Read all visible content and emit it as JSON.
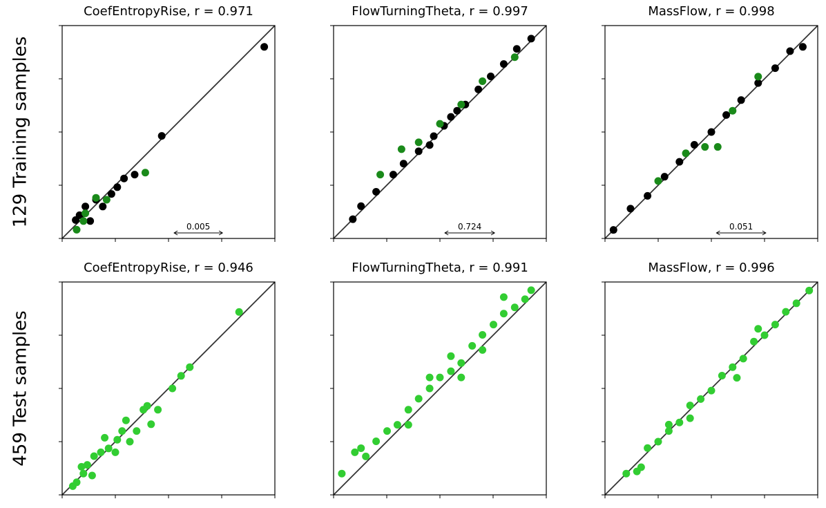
{
  "row_labels": [
    "129 Training samples",
    "459 Test samples"
  ],
  "chart_data": [
    {
      "type": "scatter",
      "title": "CoefEntropyRise, r = 0.971",
      "scale_bar": 0.005,
      "xlim": [
        0,
        0.022
      ],
      "ylim": [
        0,
        0.022
      ],
      "xticks": [
        0,
        0.0055,
        0.011,
        0.0165,
        0.022
      ],
      "yticks": [
        0,
        0.0055,
        0.011,
        0.0165,
        0.022
      ],
      "series": [
        {
          "color": "#000000",
          "x": [
            0.0209,
            0.0103,
            0.0014,
            0.0024,
            0.0035,
            0.0051,
            0.0064,
            0.0075,
            0.0042,
            0.0029,
            0.0057,
            0.0018
          ],
          "values": [
            0.0198,
            0.0106,
            0.0019,
            0.0033,
            0.004,
            0.0046,
            0.0062,
            0.0066,
            0.0033,
            0.0018,
            0.0053,
            0.0024
          ]
        },
        {
          "color": "#1a8a1a",
          "x": [
            0.0086,
            0.0015,
            0.0024,
            0.0035,
            0.0046,
            0.0022
          ],
          "values": [
            0.0068,
            0.0009,
            0.0026,
            0.0042,
            0.004,
            0.0018
          ]
        }
      ]
    },
    {
      "type": "scatter",
      "title": "FlowTurningTheta, r = 0.997",
      "scale_bar": 0.724,
      "xlim": [
        0,
        3.1
      ],
      "ylim": [
        0,
        3.1
      ],
      "xticks": [
        0,
        0.775,
        1.55,
        2.325,
        3.1
      ],
      "yticks": [
        0,
        0.775,
        1.55,
        2.325,
        3.1
      ],
      "series": [
        {
          "color": "#000000",
          "x": [
            0.28,
            0.4,
            0.62,
            0.87,
            1.02,
            1.24,
            1.46,
            1.61,
            1.8,
            1.92,
            2.11,
            2.29,
            2.48,
            2.67,
            2.88,
            1.4,
            1.71
          ],
          "values": [
            0.28,
            0.47,
            0.68,
            0.93,
            1.09,
            1.27,
            1.49,
            1.64,
            1.86,
            1.95,
            2.17,
            2.36,
            2.54,
            2.76,
            2.91,
            1.36,
            1.77
          ]
        },
        {
          "color": "#1a8a1a",
          "x": [
            0.68,
            0.99,
            1.55,
            1.86,
            2.17,
            2.64,
            1.24
          ],
          "values": [
            0.93,
            1.3,
            1.67,
            1.95,
            2.29,
            2.64,
            1.4
          ]
        }
      ]
    },
    {
      "type": "scatter",
      "title": "MassFlow, r = 0.998",
      "scale_bar": 0.051,
      "xlim": [
        0,
        0.22
      ],
      "ylim": [
        0,
        0.22
      ],
      "xticks": [
        0,
        0.055,
        0.11,
        0.165,
        0.22
      ],
      "yticks": [
        0,
        0.055,
        0.11,
        0.165,
        0.22
      ],
      "series": [
        {
          "color": "#000000",
          "x": [
            0.0088,
            0.0264,
            0.044,
            0.0616,
            0.077,
            0.0924,
            0.11,
            0.1254,
            0.1408,
            0.1584,
            0.176,
            0.1914,
            0.2046
          ],
          "values": [
            0.0088,
            0.0308,
            0.044,
            0.0638,
            0.0792,
            0.0968,
            0.11,
            0.1276,
            0.143,
            0.1606,
            0.176,
            0.1936,
            0.198
          ]
        },
        {
          "color": "#1a8a1a",
          "x": [
            0.055,
            0.0836,
            0.1034,
            0.1166,
            0.132,
            0.1584
          ],
          "values": [
            0.0594,
            0.088,
            0.0946,
            0.0946,
            0.132,
            0.1672
          ]
        }
      ]
    },
    {
      "type": "scatter",
      "title": "CoefEntropyRise, r = 0.946",
      "xlim": [
        0,
        0.022
      ],
      "ylim": [
        0,
        0.022
      ],
      "xticks": [
        0,
        0.0055,
        0.011,
        0.0165,
        0.022
      ],
      "yticks": [
        0,
        0.0055,
        0.011,
        0.0165,
        0.022
      ],
      "series": [
        {
          "color": "#32cd32",
          "x": [
            0.0183,
            0.0123,
            0.0114,
            0.0088,
            0.0084,
            0.0099,
            0.0066,
            0.007,
            0.0062,
            0.0048,
            0.0044,
            0.004,
            0.0033,
            0.0026,
            0.0022,
            0.0015,
            0.0011,
            0.002,
            0.0055,
            0.0077,
            0.0092,
            0.0031,
            0.0057,
            0.0132
          ],
          "values": [
            0.0189,
            0.0123,
            0.011,
            0.0092,
            0.0088,
            0.0088,
            0.0077,
            0.0055,
            0.0066,
            0.0048,
            0.0059,
            0.0044,
            0.004,
            0.0031,
            0.0022,
            0.0013,
            0.0009,
            0.0029,
            0.0044,
            0.0066,
            0.0073,
            0.002,
            0.0057,
            0.0132
          ]
        }
      ]
    },
    {
      "type": "scatter",
      "title": "FlowTurningTheta, r = 0.991",
      "xlim": [
        0,
        3.1
      ],
      "ylim": [
        0,
        3.1
      ],
      "xticks": [
        0,
        0.775,
        1.55,
        2.325,
        3.1
      ],
      "yticks": [
        0,
        0.775,
        1.55,
        2.325,
        3.1
      ],
      "series": [
        {
          "color": "#32cd32",
          "x": [
            0.12,
            0.31,
            0.47,
            0.62,
            0.78,
            0.93,
            1.09,
            1.24,
            1.4,
            1.55,
            1.71,
            1.86,
            2.02,
            2.17,
            2.33,
            2.48,
            2.64,
            2.79,
            2.88,
            2.48,
            1.4,
            1.71,
            1.86,
            1.09,
            2.17,
            0.4
          ],
          "values": [
            0.31,
            0.62,
            0.56,
            0.78,
            0.93,
            1.02,
            1.24,
            1.4,
            1.55,
            1.71,
            1.8,
            1.92,
            2.17,
            2.33,
            2.48,
            2.64,
            2.73,
            2.85,
            2.98,
            2.88,
            1.71,
            2.02,
            1.71,
            1.02,
            2.11,
            0.68
          ]
        }
      ]
    },
    {
      "type": "scatter",
      "title": "MassFlow, r = 0.996",
      "xlim": [
        0,
        0.22
      ],
      "ylim": [
        0,
        0.22
      ],
      "xticks": [
        0,
        0.055,
        0.11,
        0.165,
        0.22
      ],
      "yticks": [
        0,
        0.055,
        0.11,
        0.165,
        0.22
      ],
      "series": [
        {
          "color": "#32cd32",
          "x": [
            0.022,
            0.0374,
            0.044,
            0.055,
            0.066,
            0.077,
            0.088,
            0.099,
            0.11,
            0.121,
            0.132,
            0.143,
            0.154,
            0.165,
            0.176,
            0.187,
            0.198,
            0.2112,
            0.033,
            0.1364,
            0.088,
            0.1584,
            0.066
          ],
          "values": [
            0.022,
            0.0286,
            0.0484,
            0.055,
            0.066,
            0.0748,
            0.0924,
            0.099,
            0.1078,
            0.1232,
            0.132,
            0.1408,
            0.1584,
            0.165,
            0.176,
            0.1892,
            0.198,
            0.2112,
            0.0242,
            0.121,
            0.0792,
            0.1716,
            0.0726
          ]
        }
      ]
    }
  ]
}
